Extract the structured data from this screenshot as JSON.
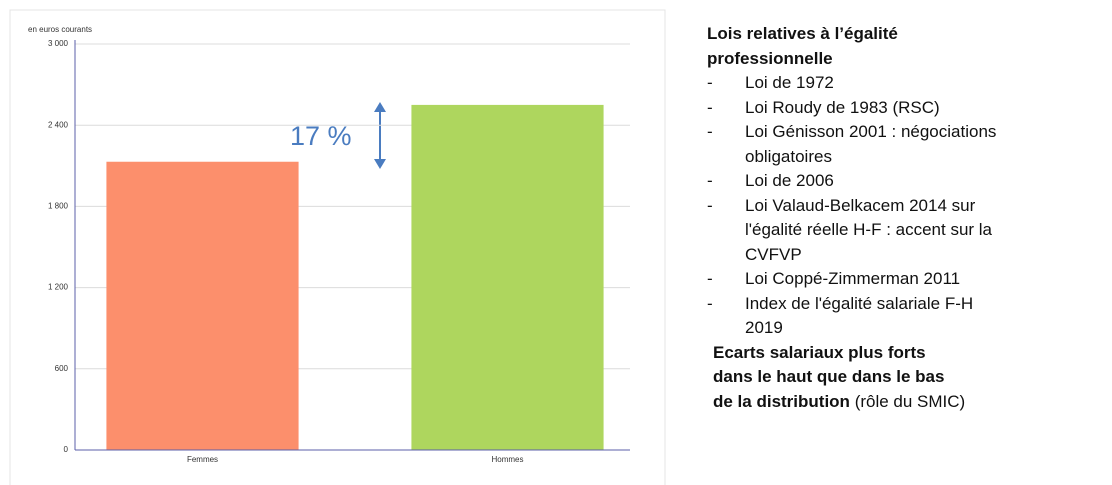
{
  "chart_data": {
    "type": "bar",
    "ylabel": "en euros courants",
    "categories": [
      "Femmes",
      "Hommes"
    ],
    "values": [
      2130,
      2550
    ],
    "colors": [
      "#fc8f6c",
      "#aed65e"
    ],
    "ylim": [
      0,
      3000
    ],
    "yticks": [
      0,
      600,
      {
        "value": 1200,
        "label": "1 200"
      },
      {
        "value": 1800,
        "label": "1 800"
      },
      {
        "value": 2400,
        "label": "2 400"
      },
      {
        "value": 3000,
        "label": "3 000"
      }
    ],
    "grid": true,
    "annotation": "17 %"
  },
  "panel": {
    "title": [
      "Lois relatives à l’égalité",
      "professionnelle"
    ],
    "items": [
      [
        "Loi de 1972"
      ],
      [
        "Loi Roudy de 1983 (RSC)"
      ],
      [
        "Loi Génisson 2001 : négociations",
        "obligatoires"
      ],
      [
        "Loi de 2006"
      ],
      [
        "Loi Valaud-Belkacem 2014 sur",
        "l'égalité réelle H-F : accent sur la",
        "CVFVP"
      ],
      [
        "Loi Coppé-Zimmerman 2011"
      ],
      [
        "Index de l'égalité salariale F-H",
        "2019"
      ]
    ],
    "note": {
      "bold": [
        "Ecarts salariaux plus forts",
        "dans le haut que dans le bas",
        "de la distribution"
      ],
      "text": "(rôle du SMIC)"
    }
  }
}
